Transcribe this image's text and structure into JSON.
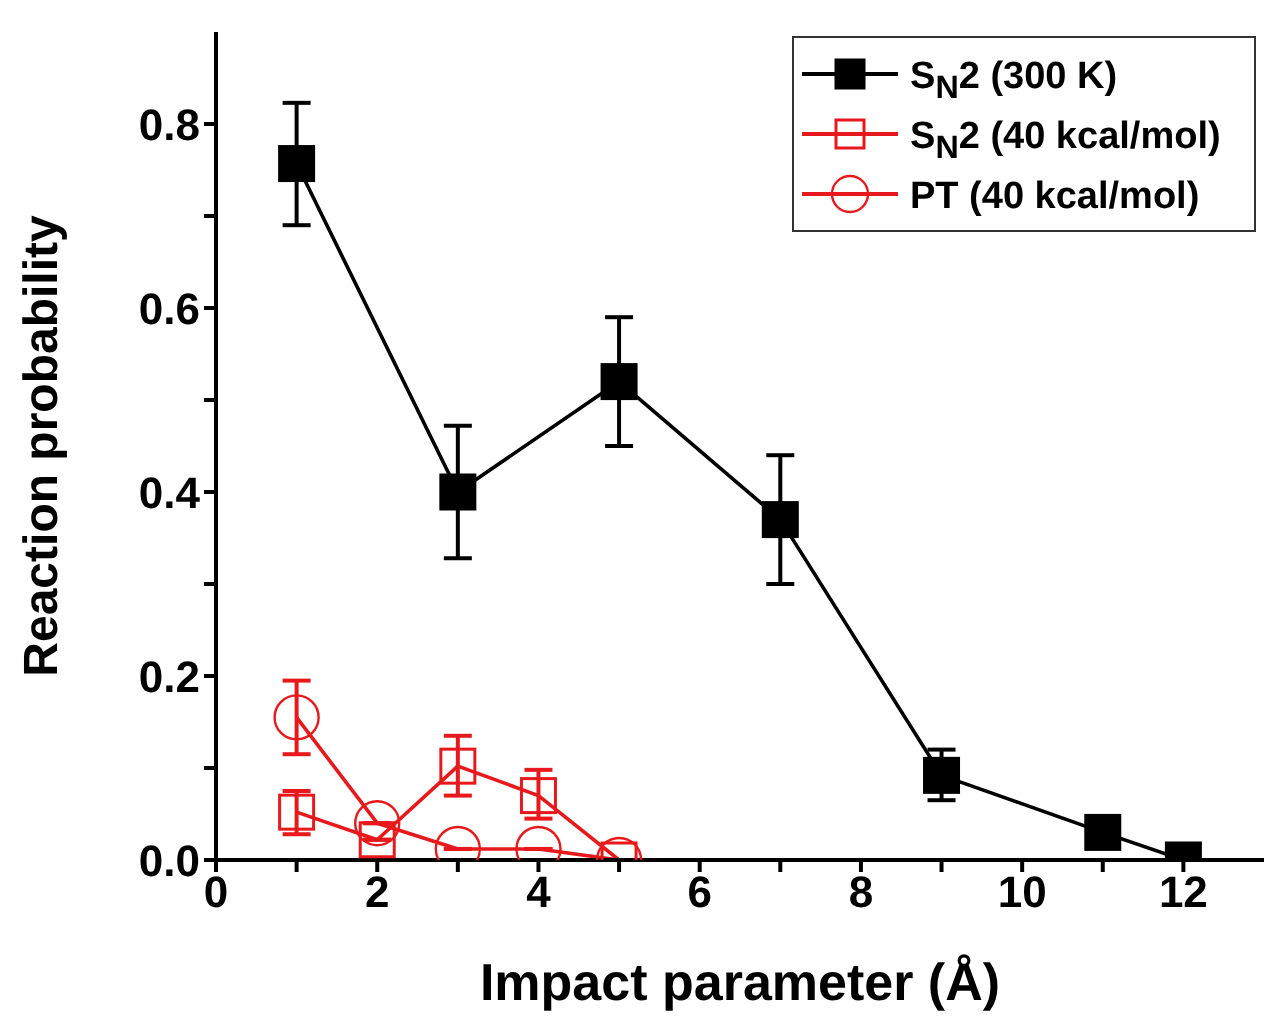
{
  "chart_data": {
    "type": "line",
    "xlabel": "Impact parameter (Å)",
    "ylabel": "Reaction probability",
    "xlim": [
      0,
      13
    ],
    "ylim": [
      0,
      0.9
    ],
    "xticks": [
      0,
      {
        "value": 1,
        "label": null
      },
      2,
      {
        "value": 3,
        "label": null
      },
      4,
      {
        "value": 5,
        "label": null
      },
      6,
      {
        "value": 7,
        "label": null
      },
      8,
      {
        "value": 9,
        "label": null
      },
      10,
      {
        "value": 11,
        "label": null
      },
      12
    ],
    "yticks": [
      {
        "value": 0,
        "label": "0.0"
      },
      {
        "value": 0.1,
        "label": null
      },
      0.2,
      {
        "value": 0.3,
        "label": null
      },
      0.4,
      {
        "value": 0.5,
        "label": null
      },
      0.6,
      {
        "value": 0.7,
        "label": null
      },
      0.8
    ],
    "grid": false,
    "legend": "top right",
    "line_style": "solid",
    "series": [
      {
        "name": "S$_{N}$2 (300 K)",
        "color": "#000000",
        "marker": "square",
        "x": [
          1,
          3,
          5,
          7,
          9,
          11,
          12
        ],
        "values": [
          0.757,
          0.4,
          0.52,
          0.37,
          0.092,
          0.03,
          0.0
        ],
        "errors": [
          [
            0.69,
            0.823
          ],
          [
            0.328,
            0.472
          ],
          [
            0.45,
            0.59
          ],
          [
            0.3,
            0.44
          ],
          [
            0.065,
            0.12
          ],
          null,
          null
        ]
      },
      {
        "name": "S$_{N}$2 (40 kcal/mol)",
        "color": "#e8191c",
        "marker": "square",
        "x": [
          1,
          2,
          3,
          4,
          5
        ],
        "values": [
          0.052,
          0.022,
          0.102,
          0.07,
          0.0
        ],
        "errors": [
          [
            0.028,
            0.075
          ],
          null,
          [
            0.07,
            0.135
          ],
          [
            0.045,
            0.098
          ],
          null
        ]
      },
      {
        "name": "PT (40 kcal/mol)",
        "color": "#e8191c",
        "marker": "circle",
        "x": [
          1,
          2,
          3,
          4,
          5
        ],
        "values": [
          0.155,
          0.04,
          0.012,
          0.012,
          0.0
        ],
        "errors": [
          [
            0.115,
            0.195
          ],
          null,
          null,
          null,
          null
        ]
      }
    ]
  }
}
